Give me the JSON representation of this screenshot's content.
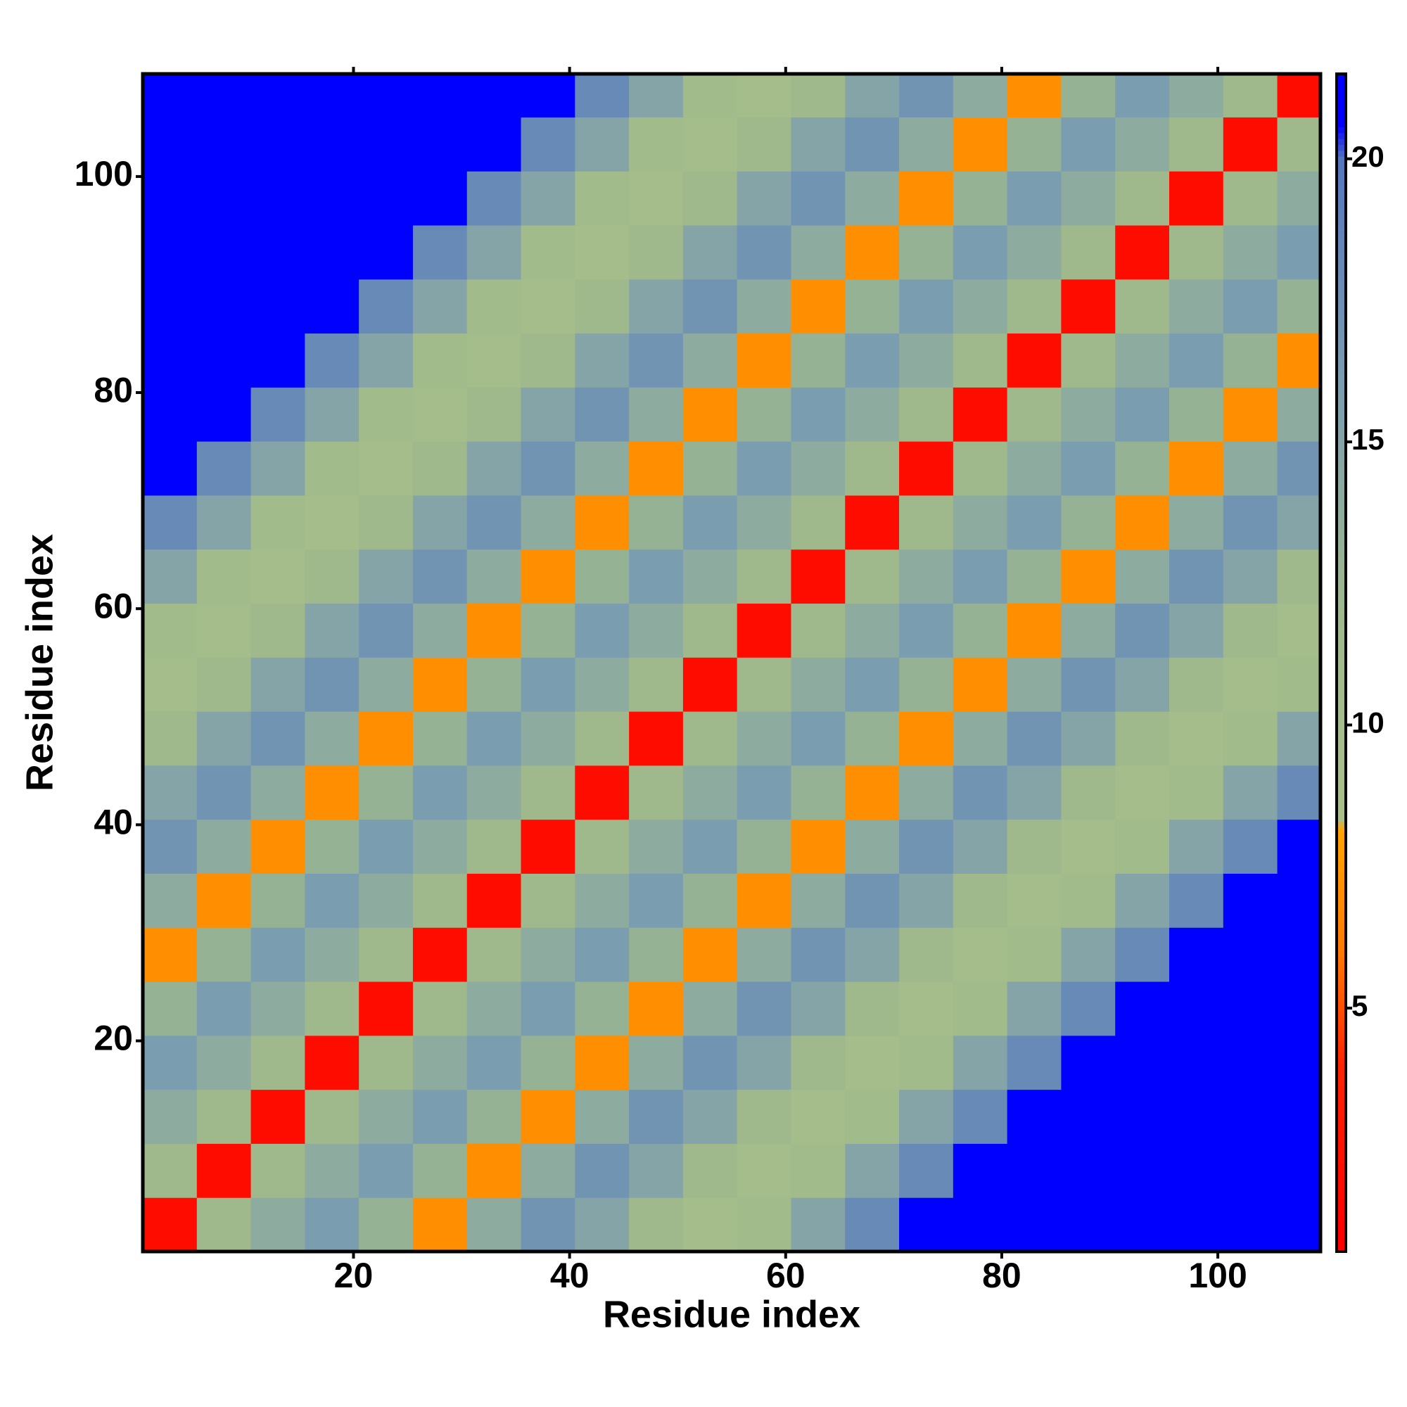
{
  "chart_data": {
    "type": "heatmap",
    "xlabel": "Residue index",
    "ylabel": "Residue index",
    "x": [
      3,
      8,
      13,
      18,
      23,
      28,
      33,
      38,
      43,
      48,
      53,
      58,
      63,
      68,
      73,
      78,
      83,
      88,
      93,
      98,
      103,
      108
    ],
    "y": [
      3,
      8,
      13,
      18,
      23,
      28,
      33,
      38,
      43,
      48,
      53,
      58,
      63,
      68,
      73,
      78,
      83,
      88,
      93,
      98,
      103,
      108
    ],
    "z": [
      [
        2,
        12,
        14,
        16,
        13,
        7,
        14,
        17,
        15,
        12,
        10,
        11,
        15,
        18,
        21,
        21,
        21,
        21,
        21,
        21,
        21,
        21
      ],
      [
        12,
        2,
        12,
        14,
        16,
        13,
        7,
        14,
        17,
        15,
        12,
        10,
        11,
        15,
        18,
        21,
        21,
        21,
        21,
        21,
        21,
        21
      ],
      [
        14,
        12,
        2,
        12,
        14,
        16,
        13,
        7,
        14,
        17,
        15,
        12,
        10,
        11,
        15,
        18,
        21,
        21,
        21,
        21,
        21,
        21
      ],
      [
        16,
        14,
        12,
        2,
        12,
        14,
        16,
        13,
        7,
        14,
        17,
        15,
        12,
        10,
        11,
        15,
        18,
        21,
        21,
        21,
        21,
        21
      ],
      [
        13,
        16,
        14,
        12,
        2,
        12,
        14,
        16,
        13,
        7,
        14,
        17,
        15,
        12,
        10,
        11,
        15,
        18,
        21,
        21,
        21,
        21
      ],
      [
        7,
        13,
        16,
        14,
        12,
        2,
        12,
        14,
        16,
        13,
        7,
        14,
        17,
        15,
        12,
        10,
        11,
        15,
        18,
        21,
        21,
        21
      ],
      [
        14,
        7,
        13,
        16,
        14,
        12,
        2,
        12,
        14,
        16,
        13,
        7,
        14,
        17,
        15,
        12,
        10,
        11,
        15,
        18,
        21,
        21
      ],
      [
        17,
        14,
        7,
        13,
        16,
        14,
        12,
        2,
        12,
        14,
        16,
        13,
        7,
        14,
        17,
        15,
        12,
        10,
        11,
        15,
        18,
        21
      ],
      [
        15,
        17,
        14,
        7,
        13,
        16,
        14,
        12,
        2,
        12,
        14,
        16,
        13,
        7,
        14,
        17,
        15,
        12,
        10,
        11,
        15,
        18
      ],
      [
        12,
        15,
        17,
        14,
        7,
        13,
        16,
        14,
        12,
        2,
        12,
        14,
        16,
        13,
        7,
        14,
        17,
        15,
        12,
        10,
        11,
        15
      ],
      [
        10,
        12,
        15,
        17,
        14,
        7,
        13,
        16,
        14,
        12,
        2,
        12,
        14,
        16,
        13,
        7,
        14,
        17,
        15,
        12,
        10,
        11
      ],
      [
        11,
        10,
        12,
        15,
        17,
        14,
        7,
        13,
        16,
        14,
        12,
        2,
        12,
        14,
        16,
        13,
        7,
        14,
        17,
        15,
        12,
        10
      ],
      [
        15,
        11,
        10,
        12,
        15,
        17,
        14,
        7,
        13,
        16,
        14,
        12,
        2,
        12,
        14,
        16,
        13,
        7,
        14,
        17,
        15,
        12
      ],
      [
        18,
        15,
        11,
        10,
        12,
        15,
        17,
        14,
        7,
        13,
        16,
        14,
        12,
        2,
        12,
        14,
        16,
        13,
        7,
        14,
        17,
        15
      ],
      [
        21,
        18,
        15,
        11,
        10,
        12,
        15,
        17,
        14,
        7,
        13,
        16,
        14,
        12,
        2,
        12,
        14,
        16,
        13,
        7,
        14,
        17
      ],
      [
        21,
        21,
        18,
        15,
        11,
        10,
        12,
        15,
        17,
        14,
        7,
        13,
        16,
        14,
        12,
        2,
        12,
        14,
        16,
        13,
        7,
        14
      ],
      [
        21,
        21,
        21,
        18,
        15,
        11,
        10,
        12,
        15,
        17,
        14,
        7,
        13,
        16,
        14,
        12,
        2,
        12,
        14,
        16,
        13,
        7
      ],
      [
        21,
        21,
        21,
        21,
        18,
        15,
        11,
        10,
        12,
        15,
        17,
        14,
        7,
        13,
        16,
        14,
        12,
        2,
        12,
        14,
        16,
        13
      ],
      [
        21,
        21,
        21,
        21,
        21,
        18,
        15,
        11,
        10,
        12,
        15,
        17,
        14,
        7,
        13,
        16,
        14,
        12,
        2,
        12,
        14,
        16
      ],
      [
        21,
        21,
        21,
        21,
        21,
        21,
        18,
        15,
        11,
        10,
        12,
        15,
        17,
        14,
        7,
        13,
        16,
        14,
        12,
        2,
        12,
        14
      ],
      [
        21,
        21,
        21,
        21,
        21,
        21,
        21,
        18,
        15,
        11,
        10,
        12,
        15,
        17,
        14,
        7,
        13,
        16,
        14,
        12,
        2,
        12
      ],
      [
        21,
        21,
        21,
        21,
        21,
        21,
        21,
        21,
        18,
        15,
        11,
        10,
        12,
        15,
        17,
        14,
        7,
        13,
        16,
        14,
        12,
        2
      ]
    ],
    "xlim": [
      0.5,
      109.5
    ],
    "ylim": [
      0.5,
      109.5
    ],
    "xticks": [
      20,
      40,
      60,
      80,
      100
    ],
    "yticks": [
      20,
      40,
      60,
      80,
      100
    ],
    "colorscale": [
      [
        1,
        "#ff0000"
      ],
      [
        4,
        "#ff2400"
      ],
      [
        6,
        "#ff7a00"
      ],
      [
        8.2,
        "#ffa500"
      ],
      [
        8.3,
        "#aabf8a"
      ],
      [
        12,
        "#9fb98c"
      ],
      [
        16,
        "#7b9db0"
      ],
      [
        20,
        "#5577bb"
      ],
      [
        20.6,
        "#0000ff"
      ],
      [
        21.5,
        "#0000ff"
      ]
    ],
    "colorbar_lim": [
      0.7,
      21.5
    ],
    "colorbar_ticks": [
      5,
      10,
      15,
      20
    ]
  }
}
